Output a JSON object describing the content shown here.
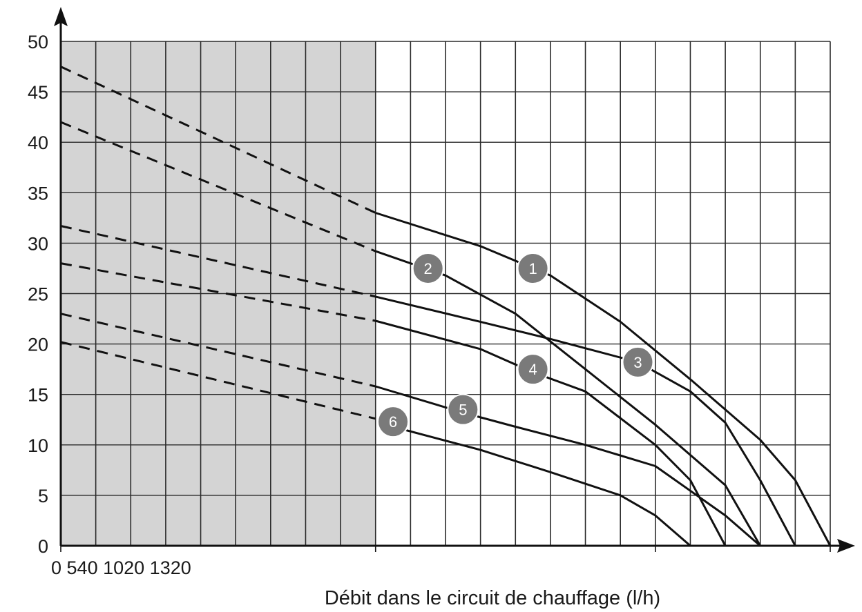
{
  "chart_data": {
    "type": "line",
    "title": "",
    "xlabel": "Débit dans le circuit de chauffage (l/h)",
    "ylabel": "",
    "xlim": [
      0,
      22
    ],
    "ylim": [
      0,
      50
    ],
    "y_ticks": [
      "0",
      "5",
      "10",
      "15",
      "20",
      "25",
      "30",
      "35",
      "40",
      "45",
      "50"
    ],
    "x_tick_labels": [
      {
        "x": 0,
        "label": "0"
      },
      {
        "x": 1,
        "label": "540"
      },
      {
        "x": 2,
        "label": "1020"
      },
      {
        "x": 3,
        "label": "1320"
      }
    ],
    "grid": true,
    "shaded_region_x": [
      0,
      9
    ],
    "series": [
      {
        "name": "1",
        "dashed": [
          [
            0,
            47.5
          ],
          [
            9,
            33.0
          ]
        ],
        "solid": [
          [
            9,
            33.0
          ],
          [
            12,
            29.7
          ],
          [
            14,
            26.8
          ],
          [
            16,
            22.2
          ],
          [
            18,
            16.5
          ],
          [
            19,
            13.5
          ],
          [
            20,
            10.5
          ],
          [
            21,
            6.5
          ],
          [
            22,
            0
          ]
        ],
        "label_at": [
          13.5,
          27.5
        ]
      },
      {
        "name": "2",
        "dashed": [
          [
            0,
            42.0
          ],
          [
            9,
            29.2
          ]
        ],
        "solid": [
          [
            9,
            29.2
          ],
          [
            11,
            26.8
          ],
          [
            13,
            23.0
          ],
          [
            15,
            17.5
          ],
          [
            17,
            12.0
          ],
          [
            19,
            6.0
          ],
          [
            20,
            0
          ]
        ],
        "label_at": [
          10.5,
          27.5
        ]
      },
      {
        "name": "3",
        "dashed": [
          [
            0,
            31.7
          ],
          [
            9,
            24.7
          ]
        ],
        "solid": [
          [
            9,
            24.7
          ],
          [
            12,
            22.2
          ],
          [
            14,
            20.5
          ],
          [
            16.5,
            18.2
          ],
          [
            18,
            15.3
          ],
          [
            19,
            12.2
          ],
          [
            20,
            6.5
          ],
          [
            21,
            0
          ]
        ],
        "label_at": [
          16.5,
          18.2
        ]
      },
      {
        "name": "4",
        "dashed": [
          [
            0,
            28.0
          ],
          [
            9,
            22.3
          ]
        ],
        "solid": [
          [
            9,
            22.3
          ],
          [
            12,
            19.5
          ],
          [
            13.5,
            17.2
          ],
          [
            15,
            15.3
          ],
          [
            17,
            10.0
          ],
          [
            18,
            6.5
          ],
          [
            19,
            0
          ]
        ],
        "label_at": [
          13.5,
          17.5
        ]
      },
      {
        "name": "5",
        "dashed": [
          [
            0,
            23.0
          ],
          [
            9,
            15.8
          ]
        ],
        "solid": [
          [
            9,
            15.8
          ],
          [
            11.5,
            13.2
          ],
          [
            13,
            11.8
          ],
          [
            15,
            10.0
          ],
          [
            17,
            7.9
          ],
          [
            19,
            3.0
          ],
          [
            20,
            0
          ]
        ],
        "label_at": [
          11.5,
          13.5
        ]
      },
      {
        "name": "6",
        "dashed": [
          [
            0,
            20.2
          ],
          [
            9,
            12.6
          ]
        ],
        "solid": [
          [
            9.5,
            11.8
          ],
          [
            12,
            9.5
          ],
          [
            14,
            7.3
          ],
          [
            16,
            5.0
          ],
          [
            17,
            3.0
          ],
          [
            18,
            0
          ]
        ],
        "label_at": [
          9.5,
          12.3
        ]
      }
    ]
  }
}
